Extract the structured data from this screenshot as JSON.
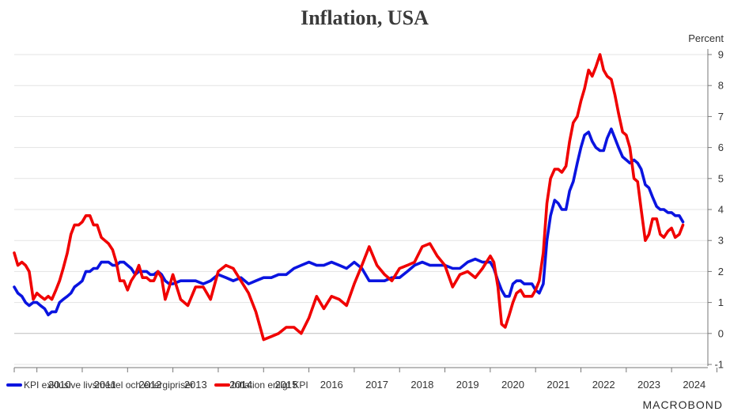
{
  "chart_data": {
    "type": "line",
    "title": "Inflation, USA",
    "ylabel": "Percent",
    "ylim": [
      -1,
      9
    ],
    "yticks": [
      "-1",
      "0",
      "1",
      "2",
      "3",
      "4",
      "5",
      "6",
      "7",
      "8",
      "9"
    ],
    "xlim": [
      2009.5,
      2024.8
    ],
    "xticks": [
      "2010",
      "2011",
      "2012",
      "2013",
      "2014",
      "2015",
      "2016",
      "2017",
      "2018",
      "2019",
      "2020",
      "2021",
      "2022",
      "2023",
      "2024"
    ],
    "grid": true,
    "legend_position": "bottom-left",
    "series": [
      {
        "name": "KPI exklusive livsmedel och energipriser",
        "color": "#0a14e0",
        "x": [
          2009.5,
          2009.58,
          2009.67,
          2009.75,
          2009.83,
          2009.92,
          2010.0,
          2010.08,
          2010.17,
          2010.25,
          2010.33,
          2010.42,
          2010.5,
          2010.58,
          2010.67,
          2010.75,
          2010.83,
          2010.92,
          2011.0,
          2011.08,
          2011.17,
          2011.25,
          2011.33,
          2011.42,
          2011.5,
          2011.58,
          2011.67,
          2011.75,
          2011.83,
          2011.92,
          2012.0,
          2012.08,
          2012.17,
          2012.25,
          2012.33,
          2012.42,
          2012.5,
          2012.58,
          2012.67,
          2012.75,
          2012.83,
          2012.92,
          2013.0,
          2013.17,
          2013.33,
          2013.5,
          2013.67,
          2013.83,
          2014.0,
          2014.17,
          2014.33,
          2014.5,
          2014.67,
          2014.83,
          2015.0,
          2015.17,
          2015.33,
          2015.5,
          2015.67,
          2015.83,
          2016.0,
          2016.17,
          2016.33,
          2016.5,
          2016.67,
          2016.83,
          2017.0,
          2017.17,
          2017.33,
          2017.5,
          2017.67,
          2017.83,
          2018.0,
          2018.17,
          2018.33,
          2018.5,
          2018.67,
          2018.83,
          2019.0,
          2019.17,
          2019.33,
          2019.5,
          2019.67,
          2019.83,
          2020.0,
          2020.08,
          2020.17,
          2020.25,
          2020.33,
          2020.42,
          2020.5,
          2020.58,
          2020.67,
          2020.75,
          2020.83,
          2020.92,
          2021.0,
          2021.08,
          2021.17,
          2021.25,
          2021.33,
          2021.42,
          2021.5,
          2021.58,
          2021.67,
          2021.75,
          2021.83,
          2021.92,
          2022.0,
          2022.08,
          2022.17,
          2022.25,
          2022.33,
          2022.42,
          2022.5,
          2022.58,
          2022.67,
          2022.75,
          2022.83,
          2022.92,
          2023.0,
          2023.08,
          2023.17,
          2023.25,
          2023.33,
          2023.42,
          2023.5,
          2023.58,
          2023.67,
          2023.75,
          2023.83,
          2023.92,
          2024.0,
          2024.08,
          2024.17,
          2024.25
        ],
        "y": [
          1.5,
          1.3,
          1.2,
          1.0,
          0.9,
          1.0,
          1.0,
          0.9,
          0.8,
          0.6,
          0.7,
          0.7,
          1.0,
          1.1,
          1.2,
          1.3,
          1.5,
          1.6,
          1.7,
          2.0,
          2.0,
          2.1,
          2.1,
          2.3,
          2.3,
          2.3,
          2.2,
          2.2,
          2.3,
          2.3,
          2.2,
          2.1,
          1.9,
          2.0,
          2.0,
          2.0,
          1.9,
          1.9,
          2.0,
          1.9,
          1.7,
          1.6,
          1.6,
          1.7,
          1.7,
          1.7,
          1.6,
          1.7,
          1.9,
          1.8,
          1.7,
          1.8,
          1.6,
          1.7,
          1.8,
          1.8,
          1.9,
          1.9,
          2.1,
          2.2,
          2.3,
          2.2,
          2.2,
          2.3,
          2.2,
          2.1,
          2.3,
          2.1,
          1.7,
          1.7,
          1.7,
          1.8,
          1.8,
          2.0,
          2.2,
          2.3,
          2.2,
          2.2,
          2.2,
          2.1,
          2.1,
          2.3,
          2.4,
          2.3,
          2.3,
          2.1,
          1.7,
          1.4,
          1.2,
          1.2,
          1.6,
          1.7,
          1.7,
          1.6,
          1.6,
          1.6,
          1.4,
          1.3,
          1.6,
          3.0,
          3.8,
          4.3,
          4.2,
          4.0,
          4.0,
          4.6,
          4.9,
          5.5,
          6.0,
          6.4,
          6.5,
          6.2,
          6.0,
          5.9,
          5.9,
          6.3,
          6.6,
          6.3,
          6.0,
          5.7,
          5.6,
          5.5,
          5.6,
          5.5,
          5.3,
          4.8,
          4.7,
          4.4,
          4.1,
          4.0,
          4.0,
          3.9,
          3.9,
          3.8,
          3.8,
          3.6
        ]
      },
      {
        "name": "Inflation enligt KPI",
        "color": "#f00000",
        "x": [
          2009.5,
          2009.58,
          2009.67,
          2009.75,
          2009.83,
          2009.92,
          2010.0,
          2010.08,
          2010.17,
          2010.25,
          2010.33,
          2010.42,
          2010.5,
          2010.58,
          2010.67,
          2010.75,
          2010.83,
          2010.92,
          2011.0,
          2011.08,
          2011.17,
          2011.25,
          2011.33,
          2011.42,
          2011.5,
          2011.58,
          2011.67,
          2011.75,
          2011.83,
          2011.92,
          2012.0,
          2012.08,
          2012.17,
          2012.25,
          2012.33,
          2012.42,
          2012.5,
          2012.58,
          2012.67,
          2012.75,
          2012.83,
          2012.92,
          2013.0,
          2013.17,
          2013.33,
          2013.5,
          2013.67,
          2013.83,
          2014.0,
          2014.17,
          2014.33,
          2014.5,
          2014.67,
          2014.83,
          2015.0,
          2015.17,
          2015.33,
          2015.5,
          2015.67,
          2015.83,
          2016.0,
          2016.17,
          2016.33,
          2016.5,
          2016.67,
          2016.83,
          2017.0,
          2017.17,
          2017.33,
          2017.5,
          2017.67,
          2017.83,
          2018.0,
          2018.17,
          2018.33,
          2018.5,
          2018.67,
          2018.83,
          2019.0,
          2019.17,
          2019.33,
          2019.5,
          2019.67,
          2019.83,
          2020.0,
          2020.08,
          2020.17,
          2020.25,
          2020.33,
          2020.42,
          2020.5,
          2020.58,
          2020.67,
          2020.75,
          2020.83,
          2020.92,
          2021.0,
          2021.08,
          2021.17,
          2021.25,
          2021.33,
          2021.42,
          2021.5,
          2021.58,
          2021.67,
          2021.75,
          2021.83,
          2021.92,
          2022.0,
          2022.08,
          2022.17,
          2022.25,
          2022.33,
          2022.42,
          2022.5,
          2022.58,
          2022.67,
          2022.75,
          2022.83,
          2022.92,
          2023.0,
          2023.08,
          2023.17,
          2023.25,
          2023.33,
          2023.42,
          2023.5,
          2023.58,
          2023.67,
          2023.75,
          2023.83,
          2023.92,
          2024.0,
          2024.08,
          2024.17,
          2024.25
        ],
        "y": [
          2.6,
          2.2,
          2.3,
          2.2,
          2.0,
          1.1,
          1.3,
          1.2,
          1.1,
          1.2,
          1.1,
          1.4,
          1.7,
          2.1,
          2.6,
          3.2,
          3.5,
          3.5,
          3.6,
          3.8,
          3.8,
          3.5,
          3.5,
          3.1,
          3.0,
          2.9,
          2.7,
          2.3,
          1.7,
          1.7,
          1.4,
          1.7,
          1.9,
          2.2,
          1.8,
          1.8,
          1.7,
          1.7,
          2.0,
          1.8,
          1.1,
          1.5,
          1.9,
          1.1,
          0.9,
          1.5,
          1.5,
          1.1,
          2.0,
          2.2,
          2.1,
          1.7,
          1.3,
          0.7,
          -0.2,
          -0.1,
          0.0,
          0.2,
          0.2,
          0.0,
          0.5,
          1.2,
          0.8,
          1.2,
          1.1,
          0.9,
          1.6,
          2.2,
          2.8,
          2.2,
          1.9,
          1.7,
          2.1,
          2.2,
          2.3,
          2.8,
          2.9,
          2.5,
          2.2,
          1.5,
          1.9,
          2.0,
          1.8,
          2.1,
          2.5,
          2.3,
          1.5,
          0.3,
          0.2,
          0.6,
          1.0,
          1.3,
          1.4,
          1.2,
          1.2,
          1.2,
          1.4,
          1.7,
          2.6,
          4.2,
          5.0,
          5.3,
          5.3,
          5.2,
          5.4,
          6.2,
          6.8,
          7.0,
          7.5,
          7.9,
          8.5,
          8.3,
          8.6,
          9.0,
          8.5,
          8.3,
          8.2,
          7.7,
          7.1,
          6.5,
          6.4,
          6.0,
          5.0,
          4.9,
          4.0,
          3.0,
          3.2,
          3.7,
          3.7,
          3.2,
          3.1,
          3.3,
          3.4,
          3.1,
          3.2,
          3.5
        ]
      }
    ]
  },
  "brand": {
    "logo_text": "MACROBOND"
  }
}
